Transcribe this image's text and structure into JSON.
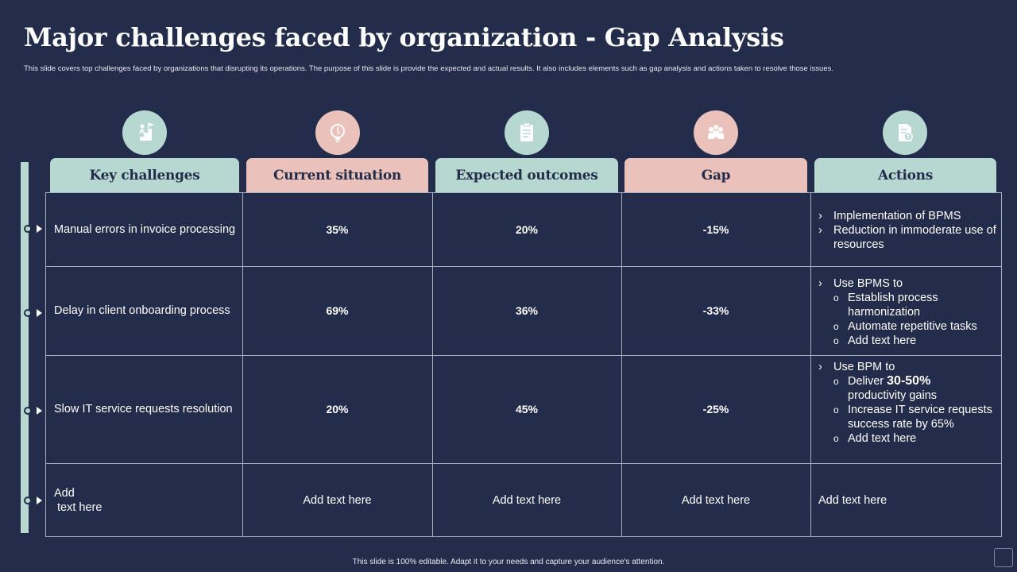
{
  "title": "Major challenges faced by organization - Gap Analysis",
  "subtitle": "This slide covers top challenges faced by organizations that disrupting its operations. The purpose of this slide is provide the expected and actual results. It also includes elements  such as gap analysis and actions taken to resolve those issues.",
  "colors": {
    "background": "#232c4a",
    "teal": "#b7d8d1",
    "pink": "#ebc1bb"
  },
  "headers": [
    "Key challenges",
    "Current situation",
    "Expected outcomes",
    "Gap",
    "Actions"
  ],
  "icons": [
    "growth-stairs-icon",
    "lightbulb-icon",
    "clipboard-icon",
    "team-icon",
    "document-money-icon"
  ],
  "rows": [
    {
      "challenge": "Manual errors in invoice processing",
      "current": "35%",
      "expected": "20%",
      "gap": "-15%"
    },
    {
      "challenge": "Delay in client onboarding process",
      "current": "69%",
      "expected": "36%",
      "gap": "-33%"
    },
    {
      "challenge": "Slow IT service requests resolution",
      "current": "20%",
      "expected": "45%",
      "gap": "-25%"
    },
    {
      "challenge": "Add\n text here",
      "current": "Add text here",
      "expected": "Add text here",
      "gap": "Add text here"
    }
  ],
  "actions": {
    "row1": {
      "b1": "Implementation of BPMS",
      "b2": "Reduction in immoderate use of resources"
    },
    "row2": {
      "b1": "Use BPMS to",
      "s1": "Establish process harmonization",
      "s2": "Automate repetitive tasks",
      "s3": "Add text here"
    },
    "row3": {
      "b1": "Use BPM to",
      "s1_pre": "Deliver ",
      "s1_big": "30-50%",
      "s1_post": "productivity gains",
      "s2": "Increase IT service requests success rate by 65%",
      "s3": "Add text here"
    },
    "row4": "Add text here"
  },
  "footer": "This slide is 100% editable.  Adapt it to your needs and capture your audience's attention."
}
